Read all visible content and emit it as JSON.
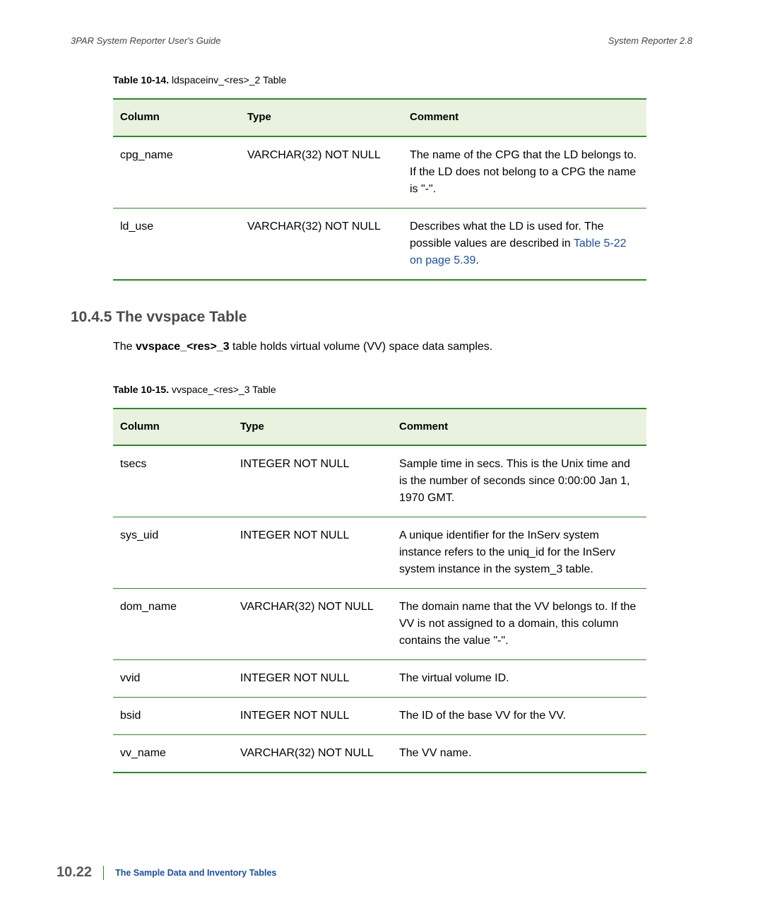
{
  "header": {
    "left": "3PAR System Reporter User's Guide",
    "right": "System Reporter 2.8"
  },
  "table14": {
    "caption_bold": "Table 10-14.",
    "caption_rest": "  ldspaceinv_<res>_2 Table",
    "columns": [
      "Column",
      "Type",
      "Comment"
    ],
    "rows": [
      {
        "column": "cpg_name",
        "type": "VARCHAR(32) NOT NULL",
        "comment_pre": "The name of the CPG that the LD belongs to. If the LD does not belong to a CPG the name is \"-\".",
        "xref": "",
        "comment_post": ""
      },
      {
        "column": "ld_use",
        "type": "VARCHAR(32) NOT NULL",
        "comment_pre": "Describes what the LD is used for. The possible values are described in ",
        "xref": "Table 5-22 on page 5.39",
        "comment_post": "."
      }
    ]
  },
  "section": {
    "heading": "10.4.5 The vvspace Table",
    "para_pre": "The ",
    "para_bold": "vvspace_<res>_3",
    "para_post": " table holds virtual volume (VV) space data samples."
  },
  "table15": {
    "caption_bold": "Table 10-15.",
    "caption_rest": "  vvspace_<res>_3 Table",
    "columns": [
      "Column",
      "Type",
      "Comment"
    ],
    "rows": [
      {
        "column": "tsecs",
        "type": "INTEGER NOT NULL",
        "comment": "Sample time in secs. This is the Unix time and is the number of seconds since 0:00:00 Jan 1, 1970 GMT."
      },
      {
        "column": "sys_uid",
        "type": "INTEGER NOT NULL",
        "comment": "A unique identifier for the InServ system instance refers to the uniq_id for the InServ system instance in the system_3 table."
      },
      {
        "column": "dom_name",
        "type": "VARCHAR(32) NOT NULL",
        "comment": "The domain name that the VV belongs to. If the VV is not assigned to a domain, this column contains the value \"-\"."
      },
      {
        "column": "vvid",
        "type": "INTEGER NOT NULL",
        "comment": "The virtual volume ID."
      },
      {
        "column": "bsid",
        "type": "INTEGER NOT NULL",
        "comment": "The ID of the base VV for the VV."
      },
      {
        "column": "vv_name",
        "type": "VARCHAR(32) NOT NULL",
        "comment": "The VV name."
      }
    ]
  },
  "footer": {
    "page": "10.22",
    "title": "The Sample Data and Inventory Tables"
  },
  "style": {
    "accent_green": "#2b8a23",
    "header_bg": "#e8f2df",
    "link_color": "#1a4fa0",
    "text_color": "#000000"
  }
}
